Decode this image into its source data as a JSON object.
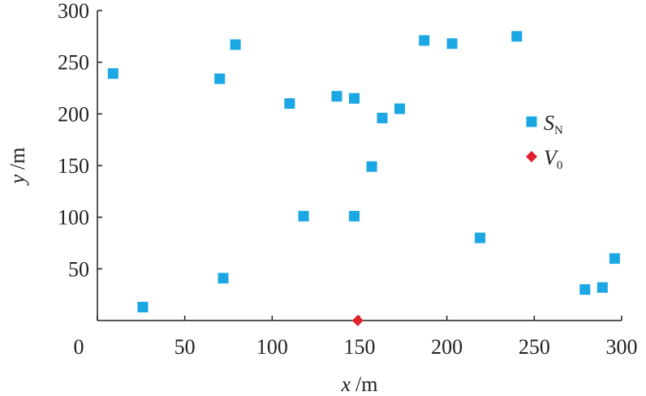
{
  "chart_data": {
    "type": "scatter",
    "xlabel": {
      "symbol": "x",
      "unit": "/m"
    },
    "ylabel": {
      "symbol": "y",
      "unit": "/m"
    },
    "xlim": [
      0,
      300
    ],
    "ylim": [
      0,
      300
    ],
    "xticks": [
      0,
      50,
      100,
      150,
      200,
      250,
      300
    ],
    "yticks": [
      50,
      100,
      150,
      200,
      250,
      300
    ],
    "series": [
      {
        "name": "S",
        "subscript": "N",
        "color": "#1ba6e4",
        "marker": "square",
        "x": [
          9,
          26,
          70,
          79,
          72,
          110,
          118,
          137,
          147,
          147,
          157,
          163,
          173,
          187,
          203,
          219,
          240,
          279,
          289,
          296
        ],
        "values": [
          239,
          13,
          234,
          267,
          41,
          210,
          101,
          217,
          215,
          101,
          149,
          196,
          205,
          271,
          268,
          80,
          275,
          30,
          32,
          60
        ]
      },
      {
        "name": "V",
        "subscript": "0",
        "color": "#e0202a",
        "marker": "diamond",
        "x": [
          149
        ],
        "values": [
          0
        ]
      }
    ]
  }
}
